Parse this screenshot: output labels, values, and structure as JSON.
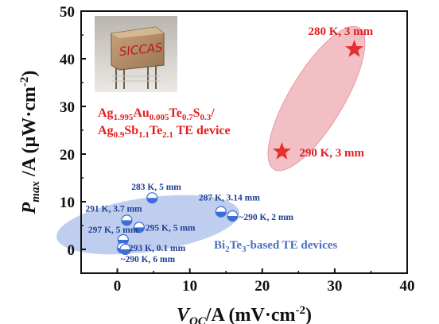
{
  "chart_data": {
    "type": "scatter",
    "xlim": [
      -5,
      40
    ],
    "ylim": [
      -5,
      50
    ],
    "x_ticks": [
      "0",
      "10",
      "20",
      "30",
      "40"
    ],
    "y_ticks": [
      "0",
      "10",
      "20",
      "30",
      "40",
      "50"
    ],
    "xlabel": {
      "v": "V",
      "sub": "OC",
      "rest": "/A (mV·cm",
      "sup": "-2",
      "close": ")"
    },
    "ylabel": {
      "p": "P",
      "sub": "max",
      "rest": " /A (μW·cm",
      "sup": "-2",
      "close": ")"
    },
    "series": [
      {
        "name": "Bi2Te3-based TE devices",
        "name_parts": {
          "a": "Bi",
          "sub1": "2",
          "b": "Te",
          "sub2": "3",
          "c": "-based TE devices"
        },
        "color": "#3b6fd6",
        "marker": "half-filled-circle",
        "points": [
          {
            "x": 4.8,
            "y": 10.8,
            "label": "283 K, 5 mm"
          },
          {
            "x": 1.3,
            "y": 6.1,
            "label": "291 K, 3.7 mm"
          },
          {
            "x": 3.0,
            "y": 4.6,
            "label": "295 K, 5 mm"
          },
          {
            "x": 0.8,
            "y": 2.0,
            "label": "297 K, 5 mm"
          },
          {
            "x": 0.7,
            "y": 0.3,
            "label": "293 K, 0.1 mm"
          },
          {
            "x": 1.1,
            "y": 0.0,
            "label": "~290 K, 6 mm"
          },
          {
            "x": 14.3,
            "y": 7.9,
            "label": "287 K, 3.14 mm"
          },
          {
            "x": 15.9,
            "y": 7.0,
            "label": "~290 K, 2 mm"
          }
        ]
      },
      {
        "name": "Ag1.995Au0.005Te0.7S0.3/Ag0.9Sb1.1Te2.1 TE device",
        "color": "#e63030",
        "marker": "star",
        "points": [
          {
            "x": 32.7,
            "y": 42.0,
            "label": "280 K, 3 mm"
          },
          {
            "x": 22.7,
            "y": 20.5,
            "label": "290 K, 3 mm"
          }
        ]
      }
    ],
    "device_label": {
      "line1": [
        {
          "t": "Ag"
        },
        {
          "t": "1.995",
          "sub": true
        },
        {
          "t": "Au"
        },
        {
          "t": "0.005",
          "sub": true
        },
        {
          "t": "Te"
        },
        {
          "t": "0.7",
          "sub": true
        },
        {
          "t": "S"
        },
        {
          "t": "0.3",
          "sub": true
        },
        {
          "t": "/"
        }
      ],
      "line2": [
        {
          "t": "Ag"
        },
        {
          "t": "0.9",
          "sub": true
        },
        {
          "t": "Sb"
        },
        {
          "t": "1.1",
          "sub": true
        },
        {
          "t": "Te"
        },
        {
          "t": "2.1",
          "sub": true
        },
        {
          "t": " TE device"
        }
      ]
    },
    "photo_text": "SICCAS"
  }
}
